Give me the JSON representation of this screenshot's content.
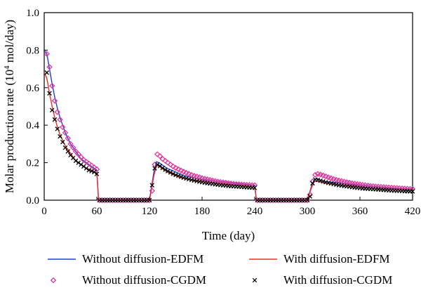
{
  "chart_data": {
    "type": "line",
    "title": "",
    "xlabel": "Time (day)",
    "ylabel_prefix": "Molar production rate (10",
    "ylabel_sup": "4",
    "ylabel_suffix": " mol/day)",
    "xlim": [
      0,
      420
    ],
    "ylim": [
      0,
      1.0
    ],
    "xticks": [
      0,
      60,
      120,
      180,
      240,
      300,
      360,
      420
    ],
    "xtick_labels": [
      "0",
      "60",
      "120",
      "180",
      "240",
      "300",
      "360",
      "420"
    ],
    "yticks": [
      0,
      0.2,
      0.4,
      0.6,
      0.8,
      1.0
    ],
    "ytick_labels": [
      "0.0",
      "0.2",
      "0.4",
      "0.6",
      "0.8",
      "1.0"
    ],
    "grid": false,
    "legend_position": "bottom",
    "series": [
      {
        "name": "Without diffusion-EDFM",
        "style": "line",
        "color": "#1f3fd6",
        "x": [
          0,
          3,
          6,
          9,
          12,
          15,
          18,
          21,
          24,
          27,
          30,
          33,
          36,
          39,
          42,
          45,
          48,
          51,
          54,
          57,
          60,
          62,
          120,
          122,
          125,
          128,
          131,
          134,
          137,
          140,
          145,
          150,
          155,
          160,
          170,
          180,
          190,
          200,
          210,
          220,
          230,
          240,
          242,
          300,
          302,
          305,
          308,
          311,
          314,
          317,
          320,
          330,
          340,
          350,
          360,
          370,
          380,
          390,
          400,
          410,
          420
        ],
        "y": [
          0.8,
          0.78,
          0.7,
          0.62,
          0.55,
          0.49,
          0.44,
          0.4,
          0.36,
          0.33,
          0.3,
          0.28,
          0.26,
          0.24,
          0.22,
          0.21,
          0.2,
          0.19,
          0.18,
          0.17,
          0.16,
          0.0,
          0.0,
          0.06,
          0.15,
          0.205,
          0.2,
          0.19,
          0.18,
          0.17,
          0.16,
          0.15,
          0.14,
          0.13,
          0.12,
          0.11,
          0.105,
          0.1,
          0.095,
          0.09,
          0.085,
          0.08,
          0.0,
          0.0,
          0.03,
          0.08,
          0.11,
          0.115,
          0.11,
          0.105,
          0.1,
          0.095,
          0.09,
          0.085,
          0.08,
          0.075,
          0.07,
          0.065,
          0.062,
          0.06,
          0.058
        ]
      },
      {
        "name": "With diffusion-EDFM",
        "style": "line",
        "color": "#e8302a",
        "x": [
          0,
          3,
          6,
          9,
          12,
          15,
          18,
          21,
          24,
          27,
          30,
          33,
          36,
          39,
          42,
          45,
          48,
          51,
          54,
          57,
          60,
          62,
          120,
          122,
          125,
          128,
          131,
          134,
          137,
          140,
          145,
          150,
          155,
          160,
          170,
          180,
          190,
          200,
          210,
          220,
          230,
          240,
          242,
          300,
          302,
          305,
          308,
          311,
          314,
          317,
          320,
          330,
          340,
          350,
          360,
          370,
          380,
          390,
          400,
          410,
          420
        ],
        "y": [
          0.68,
          0.65,
          0.57,
          0.5,
          0.44,
          0.39,
          0.35,
          0.32,
          0.29,
          0.27,
          0.25,
          0.23,
          0.21,
          0.2,
          0.19,
          0.18,
          0.17,
          0.165,
          0.16,
          0.15,
          0.145,
          0.0,
          0.0,
          0.05,
          0.13,
          0.185,
          0.18,
          0.17,
          0.16,
          0.15,
          0.14,
          0.13,
          0.12,
          0.115,
          0.105,
          0.1,
          0.095,
          0.09,
          0.085,
          0.08,
          0.075,
          0.07,
          0.0,
          0.0,
          0.03,
          0.07,
          0.1,
          0.1,
          0.098,
          0.095,
          0.09,
          0.085,
          0.08,
          0.075,
          0.07,
          0.065,
          0.06,
          0.058,
          0.055,
          0.053,
          0.05
        ]
      },
      {
        "name": "Without diffusion-CGDM",
        "style": "diamond",
        "color": "#e0379b",
        "x": [
          3,
          6,
          9,
          12,
          15,
          18,
          21,
          24,
          27,
          30,
          33,
          36,
          39,
          42,
          45,
          48,
          51,
          54,
          57,
          60,
          63,
          66,
          69,
          72,
          75,
          78,
          81,
          84,
          87,
          90,
          93,
          96,
          99,
          102,
          105,
          108,
          111,
          114,
          117,
          120,
          123,
          126,
          129,
          132,
          135,
          138,
          141,
          144,
          147,
          150,
          153,
          156,
          159,
          162,
          165,
          168,
          171,
          174,
          177,
          180,
          183,
          186,
          189,
          192,
          195,
          198,
          201,
          204,
          207,
          210,
          213,
          216,
          219,
          222,
          225,
          228,
          231,
          234,
          237,
          240,
          243,
          246,
          249,
          252,
          255,
          258,
          261,
          264,
          267,
          270,
          273,
          276,
          279,
          282,
          285,
          288,
          291,
          294,
          297,
          300,
          303,
          306,
          309,
          312,
          315,
          318,
          321,
          324,
          327,
          330,
          333,
          336,
          339,
          342,
          345,
          348,
          351,
          354,
          357,
          360,
          363,
          366,
          369,
          372,
          375,
          378,
          381,
          384,
          387,
          390,
          393,
          396,
          399,
          402,
          405,
          408,
          411,
          414,
          417,
          420
        ],
        "y": [
          0.78,
          0.71,
          0.61,
          0.53,
          0.47,
          0.43,
          0.39,
          0.36,
          0.33,
          0.3,
          0.28,
          0.26,
          0.245,
          0.23,
          0.215,
          0.205,
          0.195,
          0.185,
          0.175,
          0.165,
          0.0,
          0.0,
          0.0,
          0.0,
          0.0,
          0.0,
          0.0,
          0.0,
          0.0,
          0.0,
          0.0,
          0.0,
          0.0,
          0.0,
          0.0,
          0.0,
          0.0,
          0.0,
          0.0,
          0.0,
          0.05,
          0.19,
          0.245,
          0.235,
          0.22,
          0.21,
          0.2,
          0.19,
          0.18,
          0.172,
          0.165,
          0.158,
          0.152,
          0.146,
          0.14,
          0.135,
          0.13,
          0.126,
          0.122,
          0.118,
          0.114,
          0.111,
          0.108,
          0.105,
          0.102,
          0.099,
          0.097,
          0.095,
          0.093,
          0.091,
          0.089,
          0.087,
          0.086,
          0.085,
          0.084,
          0.083,
          0.082,
          0.081,
          0.08,
          0.08,
          0.0,
          0.0,
          0.0,
          0.0,
          0.0,
          0.0,
          0.0,
          0.0,
          0.0,
          0.0,
          0.0,
          0.0,
          0.0,
          0.0,
          0.0,
          0.0,
          0.0,
          0.0,
          0.0,
          0.0,
          0.03,
          0.1,
          0.135,
          0.14,
          0.137,
          0.132,
          0.127,
          0.122,
          0.117,
          0.113,
          0.109,
          0.105,
          0.102,
          0.099,
          0.096,
          0.093,
          0.09,
          0.088,
          0.086,
          0.084,
          0.082,
          0.08,
          0.078,
          0.076,
          0.075,
          0.073,
          0.072,
          0.071,
          0.07,
          0.069,
          0.068,
          0.067,
          0.066,
          0.065,
          0.064,
          0.063,
          0.062,
          0.061,
          0.06,
          0.06
        ]
      },
      {
        "name": "With diffusion-CGDM",
        "style": "cross",
        "color": "#000000",
        "x": [
          3,
          6,
          9,
          12,
          15,
          18,
          21,
          24,
          27,
          30,
          33,
          36,
          39,
          42,
          45,
          48,
          51,
          54,
          57,
          60,
          63,
          66,
          69,
          72,
          75,
          78,
          81,
          84,
          87,
          90,
          93,
          96,
          99,
          102,
          105,
          108,
          111,
          114,
          117,
          120,
          123,
          126,
          129,
          132,
          135,
          138,
          141,
          144,
          147,
          150,
          153,
          156,
          159,
          162,
          165,
          168,
          171,
          174,
          177,
          180,
          183,
          186,
          189,
          192,
          195,
          198,
          201,
          204,
          207,
          210,
          213,
          216,
          219,
          222,
          225,
          228,
          231,
          234,
          237,
          240,
          243,
          246,
          249,
          252,
          255,
          258,
          261,
          264,
          267,
          270,
          273,
          276,
          279,
          282,
          285,
          288,
          291,
          294,
          297,
          300,
          303,
          306,
          309,
          312,
          315,
          318,
          321,
          324,
          327,
          330,
          333,
          336,
          339,
          342,
          345,
          348,
          351,
          354,
          357,
          360,
          363,
          366,
          369,
          372,
          375,
          378,
          381,
          384,
          387,
          390,
          393,
          396,
          399,
          402,
          405,
          408,
          411,
          414,
          417,
          420
        ],
        "y": [
          0.68,
          0.57,
          0.48,
          0.43,
          0.38,
          0.34,
          0.31,
          0.28,
          0.26,
          0.24,
          0.225,
          0.21,
          0.2,
          0.19,
          0.18,
          0.17,
          0.16,
          0.155,
          0.15,
          0.14,
          0.0,
          0.0,
          0.0,
          0.0,
          0.0,
          0.0,
          0.0,
          0.0,
          0.0,
          0.0,
          0.0,
          0.0,
          0.0,
          0.0,
          0.0,
          0.0,
          0.0,
          0.0,
          0.0,
          0.0,
          0.08,
          0.17,
          0.19,
          0.182,
          0.172,
          0.163,
          0.155,
          0.148,
          0.141,
          0.135,
          0.13,
          0.125,
          0.12,
          0.116,
          0.112,
          0.108,
          0.105,
          0.102,
          0.099,
          0.096,
          0.093,
          0.091,
          0.089,
          0.087,
          0.085,
          0.083,
          0.081,
          0.079,
          0.078,
          0.076,
          0.075,
          0.074,
          0.073,
          0.072,
          0.071,
          0.07,
          0.069,
          0.068,
          0.067,
          0.066,
          0.0,
          0.0,
          0.0,
          0.0,
          0.0,
          0.0,
          0.0,
          0.0,
          0.0,
          0.0,
          0.0,
          0.0,
          0.0,
          0.0,
          0.0,
          0.0,
          0.0,
          0.0,
          0.0,
          0.0,
          0.02,
          0.09,
          0.11,
          0.108,
          0.104,
          0.1,
          0.096,
          0.092,
          0.089,
          0.086,
          0.083,
          0.08,
          0.078,
          0.076,
          0.074,
          0.072,
          0.07,
          0.068,
          0.066,
          0.065,
          0.063,
          0.062,
          0.061,
          0.06,
          0.059,
          0.058,
          0.057,
          0.056,
          0.055,
          0.054,
          0.053,
          0.052,
          0.051,
          0.05,
          0.05,
          0.049,
          0.048,
          0.048,
          0.047,
          0.047
        ]
      }
    ]
  }
}
